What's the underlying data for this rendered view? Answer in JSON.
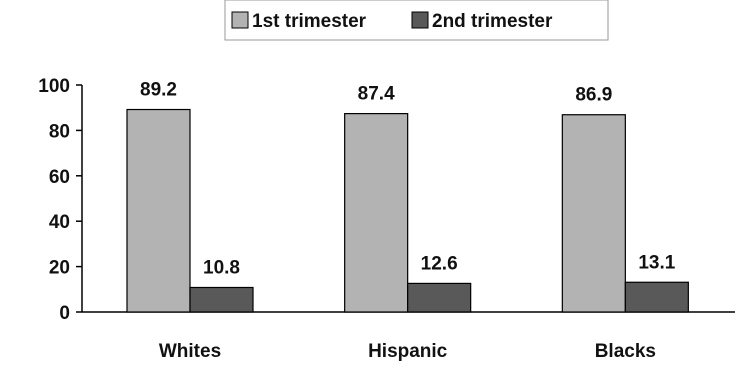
{
  "chart_data": {
    "type": "bar",
    "categories": [
      "Whites",
      "Hispanic",
      "Blacks"
    ],
    "series": [
      {
        "name": "1st trimester",
        "values": [
          89.2,
          87.4,
          86.9
        ],
        "color": "#b3b3b3"
      },
      {
        "name": "2nd trimester",
        "values": [
          10.8,
          12.6,
          13.1
        ],
        "color": "#595959"
      }
    ],
    "data_labels": [
      [
        "89.2",
        "87.4",
        "86.9"
      ],
      [
        "10.8",
        "12.6",
        "13.1"
      ]
    ],
    "title": "",
    "xlabel": "",
    "ylabel": "",
    "ylim": [
      0,
      100
    ],
    "yticks": [
      0,
      20,
      40,
      60,
      80,
      100
    ],
    "ytick_labels": [
      "0",
      "20",
      "40",
      "60",
      "80",
      "100"
    ],
    "grid": false,
    "legend_position": "top-center"
  }
}
